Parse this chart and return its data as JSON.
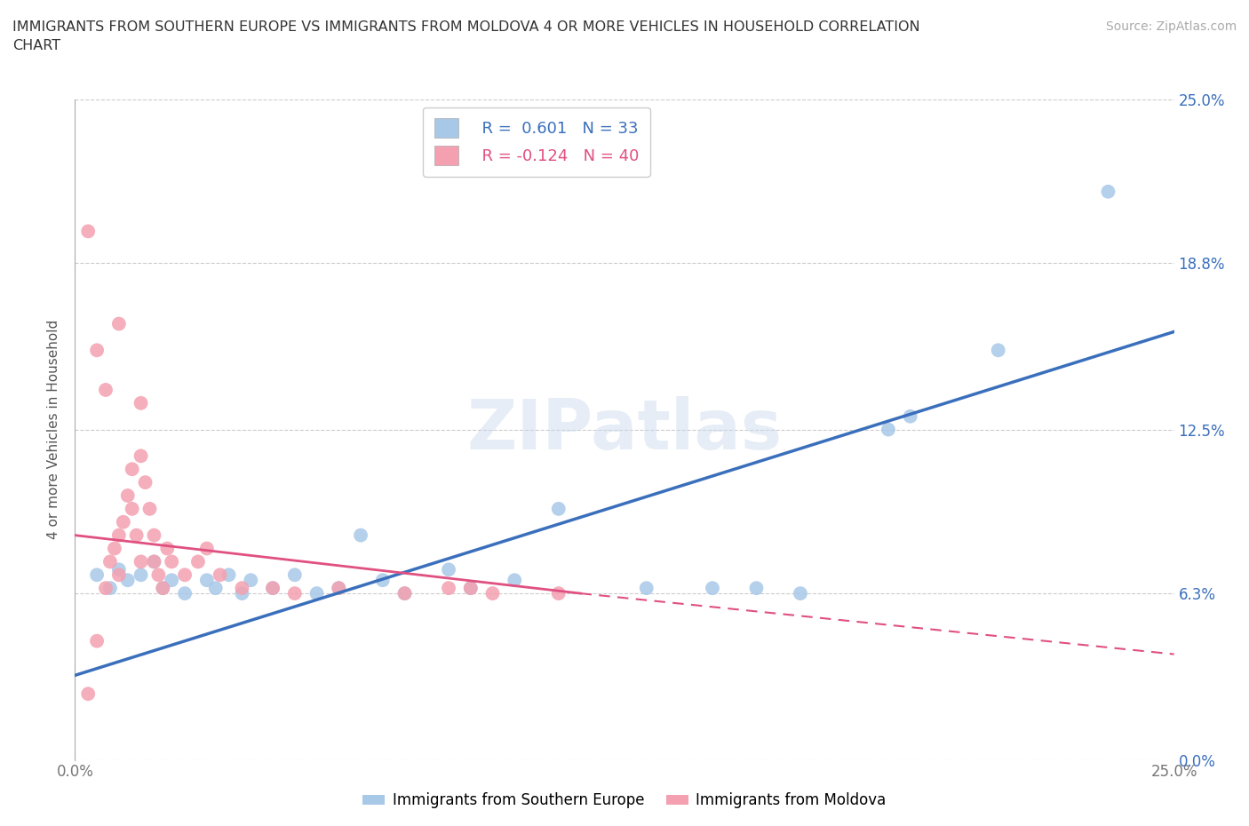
{
  "title": "IMMIGRANTS FROM SOUTHERN EUROPE VS IMMIGRANTS FROM MOLDOVA 4 OR MORE VEHICLES IN HOUSEHOLD CORRELATION\nCHART",
  "source_text": "Source: ZipAtlas.com",
  "ylabel": "4 or more Vehicles in Household",
  "legend_label_1": "Immigrants from Southern Europe",
  "legend_label_2": "Immigrants from Moldova",
  "R1": 0.601,
  "N1": 33,
  "R2": -0.124,
  "N2": 40,
  "color_blue": "#a8c8e8",
  "color_pink": "#f4a0b0",
  "color_blue_line": "#3a6fbc",
  "color_pink_line": "#e05080",
  "xlim": [
    0.0,
    0.25
  ],
  "ylim": [
    0.0,
    0.25
  ],
  "xtick_labels": [
    "0.0%",
    "25.0%"
  ],
  "ytick_labels": [
    "0.0%",
    "6.3%",
    "12.5%",
    "18.8%",
    "25.0%"
  ],
  "ytick_values": [
    0.0,
    0.063,
    0.125,
    0.188,
    0.25
  ],
  "grid_color": "#cccccc",
  "background_color": "#ffffff",
  "watermark": "ZIPatlas",
  "blue_points": [
    [
      0.005,
      0.07
    ],
    [
      0.008,
      0.065
    ],
    [
      0.01,
      0.072
    ],
    [
      0.012,
      0.068
    ],
    [
      0.015,
      0.07
    ],
    [
      0.018,
      0.075
    ],
    [
      0.02,
      0.065
    ],
    [
      0.022,
      0.068
    ],
    [
      0.025,
      0.063
    ],
    [
      0.03,
      0.068
    ],
    [
      0.032,
      0.065
    ],
    [
      0.035,
      0.07
    ],
    [
      0.038,
      0.063
    ],
    [
      0.04,
      0.068
    ],
    [
      0.045,
      0.065
    ],
    [
      0.05,
      0.07
    ],
    [
      0.055,
      0.063
    ],
    [
      0.06,
      0.065
    ],
    [
      0.065,
      0.085
    ],
    [
      0.07,
      0.068
    ],
    [
      0.075,
      0.063
    ],
    [
      0.085,
      0.072
    ],
    [
      0.09,
      0.065
    ],
    [
      0.1,
      0.068
    ],
    [
      0.11,
      0.095
    ],
    [
      0.13,
      0.065
    ],
    [
      0.145,
      0.065
    ],
    [
      0.155,
      0.065
    ],
    [
      0.165,
      0.063
    ],
    [
      0.185,
      0.125
    ],
    [
      0.19,
      0.13
    ],
    [
      0.21,
      0.155
    ],
    [
      0.235,
      0.215
    ]
  ],
  "pink_points": [
    [
      0.003,
      0.025
    ],
    [
      0.005,
      0.045
    ],
    [
      0.007,
      0.065
    ],
    [
      0.008,
      0.075
    ],
    [
      0.009,
      0.08
    ],
    [
      0.01,
      0.085
    ],
    [
      0.01,
      0.07
    ],
    [
      0.011,
      0.09
    ],
    [
      0.012,
      0.1
    ],
    [
      0.013,
      0.11
    ],
    [
      0.013,
      0.095
    ],
    [
      0.014,
      0.085
    ],
    [
      0.015,
      0.075
    ],
    [
      0.015,
      0.115
    ],
    [
      0.015,
      0.135
    ],
    [
      0.016,
      0.105
    ],
    [
      0.017,
      0.095
    ],
    [
      0.018,
      0.085
    ],
    [
      0.018,
      0.075
    ],
    [
      0.019,
      0.07
    ],
    [
      0.02,
      0.065
    ],
    [
      0.021,
      0.08
    ],
    [
      0.022,
      0.075
    ],
    [
      0.025,
      0.07
    ],
    [
      0.028,
      0.075
    ],
    [
      0.03,
      0.08
    ],
    [
      0.033,
      0.07
    ],
    [
      0.038,
      0.065
    ],
    [
      0.045,
      0.065
    ],
    [
      0.05,
      0.063
    ],
    [
      0.06,
      0.065
    ],
    [
      0.075,
      0.063
    ],
    [
      0.085,
      0.065
    ],
    [
      0.09,
      0.065
    ],
    [
      0.095,
      0.063
    ],
    [
      0.11,
      0.063
    ],
    [
      0.003,
      0.2
    ],
    [
      0.005,
      0.155
    ],
    [
      0.007,
      0.14
    ],
    [
      0.01,
      0.165
    ]
  ],
  "blue_line": [
    [
      0.0,
      0.032
    ],
    [
      0.25,
      0.162
    ]
  ],
  "pink_line_solid": [
    [
      0.0,
      0.085
    ],
    [
      0.115,
      0.063
    ]
  ],
  "pink_line_dashed": [
    [
      0.115,
      0.063
    ],
    [
      0.25,
      0.04
    ]
  ]
}
